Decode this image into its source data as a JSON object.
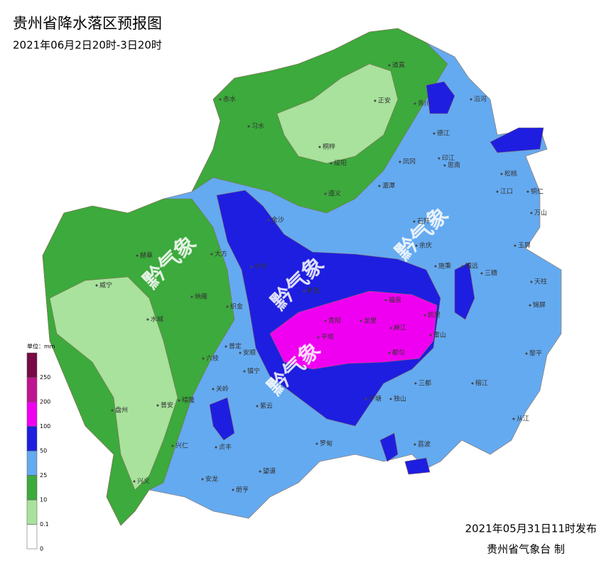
{
  "header": {
    "title": "贵州省降水落区预报图",
    "subtitle": "2021年06月2日20时-3日20时"
  },
  "legend": {
    "unit": "单位：mm",
    "levels": [
      {
        "value": 0,
        "color": "#ffffff"
      },
      {
        "value": 0.1,
        "color": "#a8e29c"
      },
      {
        "value": 10,
        "color": "#3caa3c"
      },
      {
        "value": 25,
        "color": "#64aaf0"
      },
      {
        "value": 50,
        "color": "#1e1ee0"
      },
      {
        "value": 100,
        "color": "#f000f0"
      },
      {
        "value": 200,
        "color": "#c01490"
      },
      {
        "value": 250,
        "color": "#780a46"
      }
    ]
  },
  "watermark": "黔气象",
  "places": [
    "道真",
    "正安",
    "务川",
    "沿河",
    "赤水",
    "习水",
    "桐梓",
    "绥阳",
    "凤冈",
    "德江",
    "印江",
    "思南",
    "松桃",
    "湄潭",
    "遵义",
    "江口",
    "铜仁",
    "万山",
    "金沙",
    "石阡",
    "余庆",
    "玉屏",
    "大方",
    "毕节",
    "黔西",
    "施秉",
    "镇远",
    "三穗",
    "天柱",
    "赫章",
    "威宁",
    "纳雍",
    "织金",
    "福泉",
    "贵阳",
    "凯里",
    "锦屏",
    "水城",
    "六枝",
    "普定",
    "安顺",
    "平坝",
    "龙里",
    "麻江",
    "雷山",
    "镇宁",
    "都匀",
    "黎平",
    "关岭",
    "紫云",
    "平塘",
    "独山",
    "三都",
    "榕江",
    "盘州",
    "晴隆",
    "普安",
    "兴仁",
    "贞丰",
    "罗甸",
    "荔波",
    "从江",
    "望谟",
    "兴义",
    "安龙",
    "册亨"
  ],
  "footer": {
    "issued": "2021年05月31日11时发布",
    "agency": "贵州省气象台 制"
  }
}
